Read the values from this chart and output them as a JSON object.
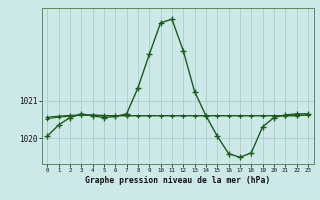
{
  "xlabel": "Graphe pression niveau de la mer (hPa)",
  "background_color": "#cce8e8",
  "grid_color": "#aacccc",
  "line_color": "#1a5c1a",
  "hours": [
    0,
    1,
    2,
    3,
    4,
    5,
    6,
    7,
    8,
    9,
    10,
    11,
    12,
    13,
    14,
    15,
    16,
    17,
    18,
    19,
    20,
    21,
    22,
    23
  ],
  "series1": [
    1020.05,
    1020.35,
    1020.55,
    1020.65,
    1020.6,
    1020.55,
    1020.58,
    1020.65,
    1021.35,
    1022.25,
    1023.1,
    1023.2,
    1022.35,
    1021.25,
    1020.6,
    1020.05,
    1019.58,
    1019.48,
    1019.6,
    1020.3,
    1020.55,
    1020.62,
    1020.65,
    1020.65
  ],
  "series2": [
    1020.52,
    1020.56,
    1020.59,
    1020.61,
    1020.61,
    1020.6,
    1020.6,
    1020.6,
    1020.6,
    1020.6,
    1020.6,
    1020.6,
    1020.6,
    1020.6,
    1020.6,
    1020.6,
    1020.6,
    1020.6,
    1020.6,
    1020.6,
    1020.6,
    1020.6,
    1020.6,
    1020.62
  ],
  "series3": [
    1020.56,
    1020.59,
    1020.61,
    1020.62,
    1020.62,
    1020.61,
    1020.6,
    1020.6,
    1020.6,
    1020.6,
    1020.6,
    1020.6,
    1020.6,
    1020.6,
    1020.6,
    1020.6,
    1020.6,
    1020.6,
    1020.6,
    1020.6,
    1020.6,
    1020.6,
    1020.6,
    1020.63
  ],
  "ylim": [
    1019.3,
    1023.5
  ],
  "yticks": [
    1020,
    1021
  ],
  "xlim": [
    -0.5,
    23.5
  ],
  "figsize": [
    3.2,
    2.0
  ],
  "dpi": 100
}
